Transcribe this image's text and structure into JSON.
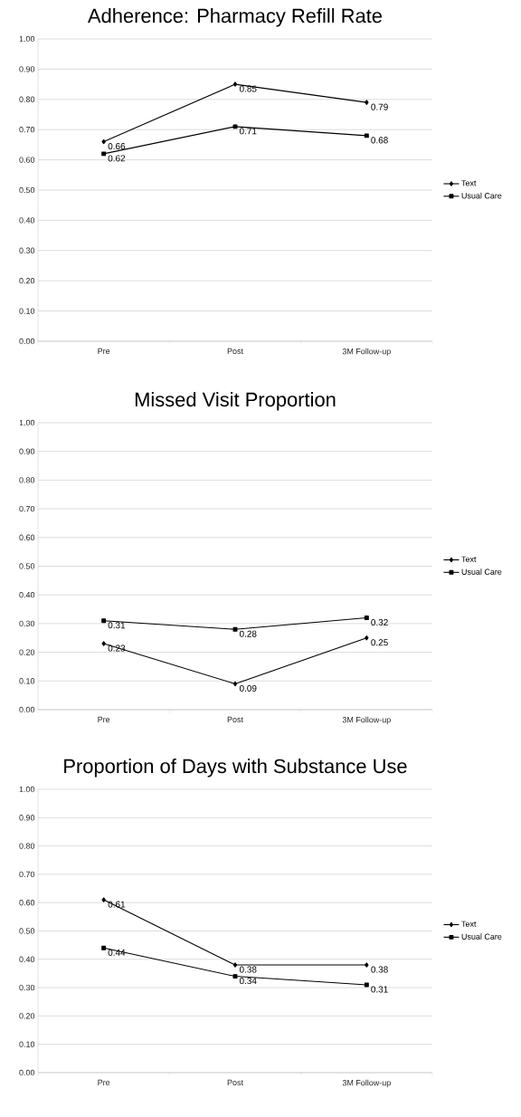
{
  "chart_data": [
    {
      "type": "line",
      "title": "Adherence: Pharmacy Refill Rate",
      "categories": [
        "Pre",
        "Post",
        "3M Follow-up"
      ],
      "series": [
        {
          "name": "Text",
          "color": "#000000",
          "marker": "diamond",
          "values": [
            0.66,
            0.85,
            0.79
          ]
        },
        {
          "name": "Usual Care",
          "color": "#000000",
          "marker": "square",
          "values": [
            0.62,
            0.71,
            0.68
          ]
        }
      ],
      "ylim": [
        0,
        1
      ],
      "yticks": [
        {
          "value": 0,
          "label": "0.00"
        },
        {
          "value": 0.1,
          "label": "0.10"
        },
        {
          "value": 0.2,
          "label": "0.20"
        },
        {
          "value": 0.3,
          "label": "0.30"
        },
        {
          "value": 0.4,
          "label": "0.40"
        },
        {
          "value": 0.5,
          "label": "0.50"
        },
        {
          "value": 0.6,
          "label": "0.60"
        },
        {
          "value": 0.7,
          "label": "0.70"
        },
        {
          "value": 0.8,
          "label": "0.80"
        },
        {
          "value": 0.9,
          "label": "0.90"
        },
        {
          "value": 1,
          "label": "1.00"
        }
      ],
      "grid": "y",
      "legend": "right",
      "data_labels": true
    },
    {
      "type": "line",
      "title": "Missed Visit Proportion",
      "categories": [
        "Pre",
        "Post",
        "3M Follow-up"
      ],
      "series": [
        {
          "name": "Text",
          "color": "#000000",
          "marker": "diamond",
          "values": [
            0.23,
            0.09,
            0.25
          ]
        },
        {
          "name": "Usual Care",
          "color": "#000000",
          "marker": "square",
          "values": [
            0.31,
            0.28,
            0.32
          ]
        }
      ],
      "ylim": [
        0,
        1
      ],
      "yticks": [
        {
          "value": 0,
          "label": "0.00"
        },
        {
          "value": 0.1,
          "label": "0.10"
        },
        {
          "value": 0.2,
          "label": "0.20"
        },
        {
          "value": 0.3,
          "label": "0.30"
        },
        {
          "value": 0.4,
          "label": "0.40"
        },
        {
          "value": 0.5,
          "label": "0.50"
        },
        {
          "value": 0.6,
          "label": "0.60"
        },
        {
          "value": 0.7,
          "label": "0.70"
        },
        {
          "value": 0.8,
          "label": "0.80"
        },
        {
          "value": 0.9,
          "label": "0.90"
        },
        {
          "value": 1,
          "label": "1.00"
        }
      ],
      "grid": "y",
      "legend": "right",
      "data_labels": true
    },
    {
      "type": "line",
      "title": "Proportion of Days with Substance Use",
      "categories": [
        "Pre",
        "Post",
        "3M Follow-up"
      ],
      "series": [
        {
          "name": "Text",
          "color": "#000000",
          "marker": "diamond",
          "values": [
            0.61,
            0.38,
            0.38
          ]
        },
        {
          "name": "Usual Care",
          "color": "#000000",
          "marker": "square",
          "values": [
            0.44,
            0.34,
            0.31
          ]
        }
      ],
      "ylim": [
        0,
        1
      ],
      "yticks": [
        {
          "value": 0,
          "label": "0.00"
        },
        {
          "value": 0.1,
          "label": "0.10"
        },
        {
          "value": 0.2,
          "label": "0.20"
        },
        {
          "value": 0.3,
          "label": "0.30"
        },
        {
          "value": 0.4,
          "label": "0.40"
        },
        {
          "value": 0.5,
          "label": "0.50"
        },
        {
          "value": 0.6,
          "label": "0.60"
        },
        {
          "value": 0.7,
          "label": "0.70"
        },
        {
          "value": 0.8,
          "label": "0.80"
        },
        {
          "value": 0.9,
          "label": "0.90"
        },
        {
          "value": 1,
          "label": "1.00"
        }
      ],
      "grid": "y",
      "legend": "right",
      "data_labels": true
    }
  ]
}
